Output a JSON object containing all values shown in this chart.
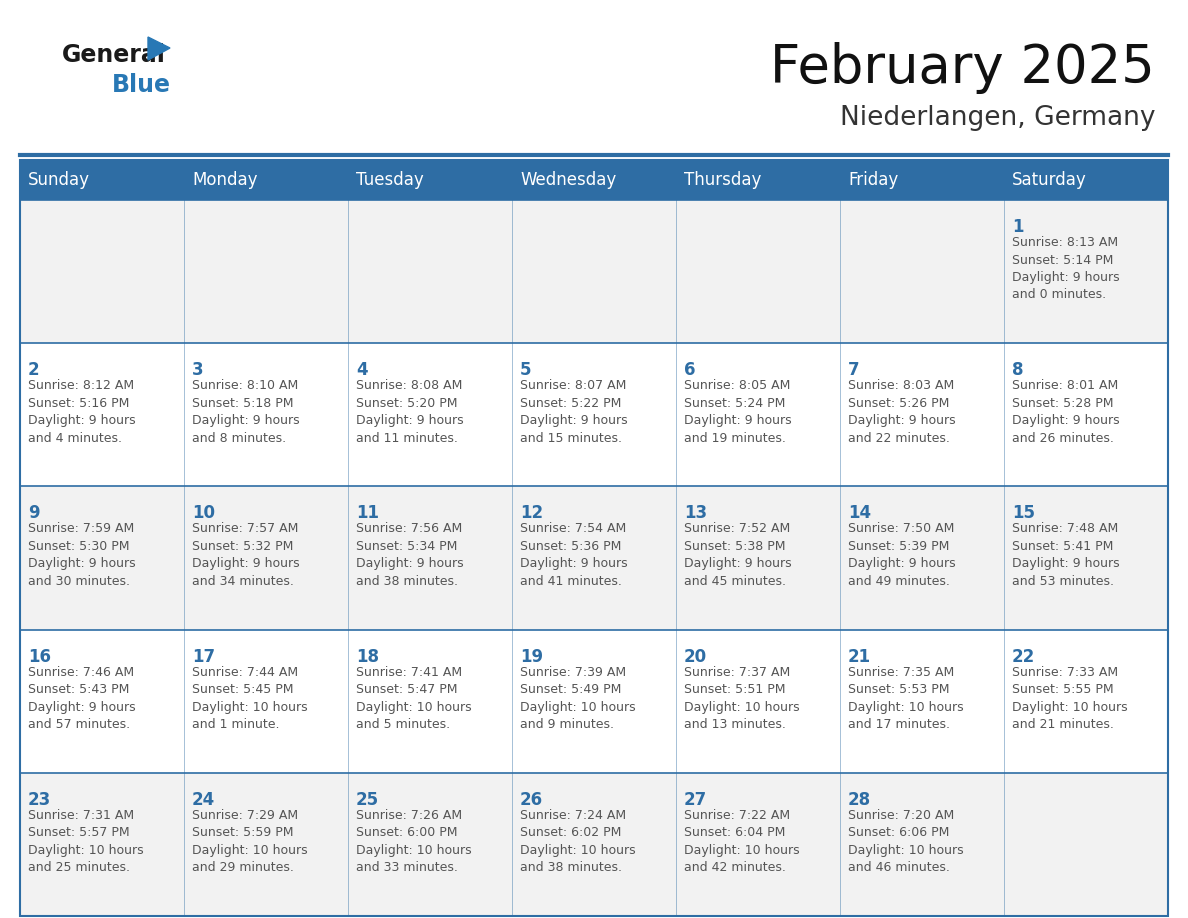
{
  "title": "February 2025",
  "subtitle": "Niederlangen, Germany",
  "days_of_week": [
    "Sunday",
    "Monday",
    "Tuesday",
    "Wednesday",
    "Thursday",
    "Friday",
    "Saturday"
  ],
  "header_bg": "#2E6DA4",
  "header_text": "#FFFFFF",
  "cell_bg_odd": "#F2F2F2",
  "cell_bg_even": "#FFFFFF",
  "border_color": "#2E6DA4",
  "day_number_color": "#2E6DA4",
  "text_color": "#555555",
  "logo_general_color": "#1a1a1a",
  "logo_blue_color": "#2878b5",
  "weeks": [
    [
      {
        "day": null,
        "info": null
      },
      {
        "day": null,
        "info": null
      },
      {
        "day": null,
        "info": null
      },
      {
        "day": null,
        "info": null
      },
      {
        "day": null,
        "info": null
      },
      {
        "day": null,
        "info": null
      },
      {
        "day": 1,
        "info": "Sunrise: 8:13 AM\nSunset: 5:14 PM\nDaylight: 9 hours\nand 0 minutes."
      }
    ],
    [
      {
        "day": 2,
        "info": "Sunrise: 8:12 AM\nSunset: 5:16 PM\nDaylight: 9 hours\nand 4 minutes."
      },
      {
        "day": 3,
        "info": "Sunrise: 8:10 AM\nSunset: 5:18 PM\nDaylight: 9 hours\nand 8 minutes."
      },
      {
        "day": 4,
        "info": "Sunrise: 8:08 AM\nSunset: 5:20 PM\nDaylight: 9 hours\nand 11 minutes."
      },
      {
        "day": 5,
        "info": "Sunrise: 8:07 AM\nSunset: 5:22 PM\nDaylight: 9 hours\nand 15 minutes."
      },
      {
        "day": 6,
        "info": "Sunrise: 8:05 AM\nSunset: 5:24 PM\nDaylight: 9 hours\nand 19 minutes."
      },
      {
        "day": 7,
        "info": "Sunrise: 8:03 AM\nSunset: 5:26 PM\nDaylight: 9 hours\nand 22 minutes."
      },
      {
        "day": 8,
        "info": "Sunrise: 8:01 AM\nSunset: 5:28 PM\nDaylight: 9 hours\nand 26 minutes."
      }
    ],
    [
      {
        "day": 9,
        "info": "Sunrise: 7:59 AM\nSunset: 5:30 PM\nDaylight: 9 hours\nand 30 minutes."
      },
      {
        "day": 10,
        "info": "Sunrise: 7:57 AM\nSunset: 5:32 PM\nDaylight: 9 hours\nand 34 minutes."
      },
      {
        "day": 11,
        "info": "Sunrise: 7:56 AM\nSunset: 5:34 PM\nDaylight: 9 hours\nand 38 minutes."
      },
      {
        "day": 12,
        "info": "Sunrise: 7:54 AM\nSunset: 5:36 PM\nDaylight: 9 hours\nand 41 minutes."
      },
      {
        "day": 13,
        "info": "Sunrise: 7:52 AM\nSunset: 5:38 PM\nDaylight: 9 hours\nand 45 minutes."
      },
      {
        "day": 14,
        "info": "Sunrise: 7:50 AM\nSunset: 5:39 PM\nDaylight: 9 hours\nand 49 minutes."
      },
      {
        "day": 15,
        "info": "Sunrise: 7:48 AM\nSunset: 5:41 PM\nDaylight: 9 hours\nand 53 minutes."
      }
    ],
    [
      {
        "day": 16,
        "info": "Sunrise: 7:46 AM\nSunset: 5:43 PM\nDaylight: 9 hours\nand 57 minutes."
      },
      {
        "day": 17,
        "info": "Sunrise: 7:44 AM\nSunset: 5:45 PM\nDaylight: 10 hours\nand 1 minute."
      },
      {
        "day": 18,
        "info": "Sunrise: 7:41 AM\nSunset: 5:47 PM\nDaylight: 10 hours\nand 5 minutes."
      },
      {
        "day": 19,
        "info": "Sunrise: 7:39 AM\nSunset: 5:49 PM\nDaylight: 10 hours\nand 9 minutes."
      },
      {
        "day": 20,
        "info": "Sunrise: 7:37 AM\nSunset: 5:51 PM\nDaylight: 10 hours\nand 13 minutes."
      },
      {
        "day": 21,
        "info": "Sunrise: 7:35 AM\nSunset: 5:53 PM\nDaylight: 10 hours\nand 17 minutes."
      },
      {
        "day": 22,
        "info": "Sunrise: 7:33 AM\nSunset: 5:55 PM\nDaylight: 10 hours\nand 21 minutes."
      }
    ],
    [
      {
        "day": 23,
        "info": "Sunrise: 7:31 AM\nSunset: 5:57 PM\nDaylight: 10 hours\nand 25 minutes."
      },
      {
        "day": 24,
        "info": "Sunrise: 7:29 AM\nSunset: 5:59 PM\nDaylight: 10 hours\nand 29 minutes."
      },
      {
        "day": 25,
        "info": "Sunrise: 7:26 AM\nSunset: 6:00 PM\nDaylight: 10 hours\nand 33 minutes."
      },
      {
        "day": 26,
        "info": "Sunrise: 7:24 AM\nSunset: 6:02 PM\nDaylight: 10 hours\nand 38 minutes."
      },
      {
        "day": 27,
        "info": "Sunrise: 7:22 AM\nSunset: 6:04 PM\nDaylight: 10 hours\nand 42 minutes."
      },
      {
        "day": 28,
        "info": "Sunrise: 7:20 AM\nSunset: 6:06 PM\nDaylight: 10 hours\nand 46 minutes."
      },
      {
        "day": null,
        "info": null
      }
    ]
  ]
}
